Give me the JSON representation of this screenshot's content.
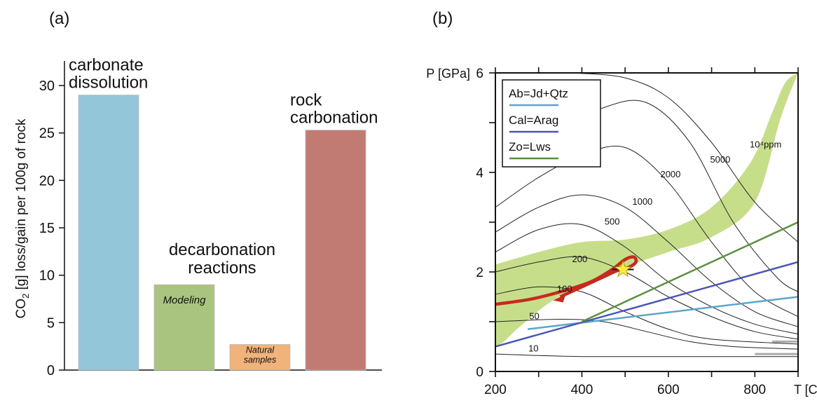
{
  "panels": {
    "a": {
      "label": "(a)"
    },
    "b": {
      "label": "(b)"
    }
  },
  "chart_data": [
    {
      "type": "bar",
      "panel": "(a)",
      "ylabel": "CO2 [g] loss/gain per 100g of rock",
      "ylabel_parts": {
        "pre": "CO",
        "sub": "2",
        "post": " [g] loss/gain per 100g of rock"
      },
      "ylim": [
        0,
        32
      ],
      "yticks": [
        "0",
        "5",
        "10",
        "15",
        "20",
        "25",
        "30"
      ],
      "bars": [
        {
          "value": 29,
          "color": "#93c6d9",
          "text": "",
          "label_lines": [
            "carbonate",
            "dissolution"
          ]
        },
        {
          "value": 9,
          "color": "#a9c47e",
          "text": "Modeling",
          "label_lines": []
        },
        {
          "value": 2.7,
          "color": "#f0b37a",
          "text": "Natural samples",
          "text_lines": [
            "Natural",
            "samples"
          ],
          "label_lines": []
        },
        {
          "value": 25.3,
          "color": "#c27b73",
          "text": "",
          "label_lines": [
            "rock",
            "carbonation"
          ]
        }
      ],
      "group_label_lines": [
        "decarbonation",
        "reactions"
      ]
    },
    {
      "type": "line",
      "panel": "(b)",
      "xlabel": "T [C°]",
      "ylabel": "P [GPa]",
      "xlim": [
        200,
        900
      ],
      "ylim": [
        0,
        6
      ],
      "xticks": [
        "200",
        "400",
        "600",
        "800"
      ],
      "yticks": [
        "0",
        "2",
        "4",
        "6"
      ],
      "legend": {
        "position": "top-left",
        "entries": [
          {
            "name": "Ab=Jd+Qtz",
            "color": "#5aa6c8"
          },
          {
            "name": "Cal=Arag",
            "color": "#4a55b8"
          },
          {
            "name": "Zo=Lws",
            "color": "#5c8f3c"
          }
        ]
      },
      "reaction_lines": [
        {
          "name": "Ab=Jd+Qtz",
          "color": "#5aa6c8",
          "x": [
            275,
            900
          ],
          "y": [
            0.85,
            1.5
          ]
        },
        {
          "name": "Cal=Arag",
          "color": "#4a55b8",
          "x": [
            200,
            900
          ],
          "y": [
            0.5,
            2.2
          ]
        },
        {
          "name": "Zo=Lws",
          "color": "#5c8f3c",
          "x": [
            400,
            900
          ],
          "y": [
            1.0,
            3.0
          ]
        }
      ],
      "contours": [
        {
          "label": "10",
          "label_at": [
            288,
            0.4
          ],
          "x": [
            200,
            300,
            400,
            500,
            600,
            700,
            900
          ],
          "y": [
            0.35,
            0.32,
            0.3,
            0.3,
            0.3,
            0.3,
            0.3
          ]
        },
        {
          "label": "50",
          "label_at": [
            290,
            1.05
          ],
          "x": [
            200,
            350,
            450,
            550,
            650,
            750,
            900
          ],
          "y": [
            1.0,
            1.05,
            1.0,
            0.8,
            0.6,
            0.5,
            0.45
          ]
        },
        {
          "label": "100",
          "label_at": [
            360,
            1.6
          ],
          "x": [
            200,
            300,
            400,
            500,
            600,
            700,
            900
          ],
          "y": [
            1.55,
            1.7,
            1.6,
            1.2,
            0.85,
            0.65,
            0.55
          ]
        },
        {
          "label": "200",
          "label_at": [
            395,
            2.2
          ],
          "x": [
            200,
            300,
            400,
            500,
            600,
            700,
            800,
            900
          ],
          "y": [
            2.0,
            2.2,
            2.3,
            2.0,
            1.5,
            1.1,
            0.8,
            0.65
          ]
        },
        {
          "label": "500",
          "label_at": [
            470,
            2.95
          ],
          "x": [
            200,
            300,
            400,
            500,
            600,
            700,
            800,
            900
          ],
          "y": [
            2.4,
            2.85,
            2.95,
            2.5,
            1.8,
            1.3,
            0.95,
            0.75
          ]
        },
        {
          "label": "1000",
          "label_at": [
            540,
            3.35
          ],
          "x": [
            200,
            300,
            400,
            500,
            600,
            700,
            800,
            900
          ],
          "y": [
            2.8,
            3.3,
            3.55,
            3.3,
            2.6,
            1.8,
            1.2,
            0.9
          ]
        },
        {
          "label": "2000",
          "label_at": [
            605,
            3.9
          ],
          "x": [
            200,
            300,
            400,
            500,
            600,
            700,
            800,
            900
          ],
          "y": [
            3.3,
            3.9,
            4.35,
            4.5,
            3.8,
            2.6,
            1.6,
            1.1
          ]
        },
        {
          "label": "5000",
          "label_at": [
            720,
            4.2
          ],
          "x": [
            250,
            350,
            450,
            550,
            650,
            750,
            850,
            900
          ],
          "y": [
            4.3,
            4.8,
            5.3,
            5.4,
            4.6,
            3.0,
            1.9,
            1.6
          ]
        },
        {
          "label": "10⁴ppm",
          "label_at": [
            825,
            4.5
          ],
          "x": [
            380,
            500,
            600,
            700,
            800,
            900
          ],
          "y": [
            6.0,
            5.9,
            5.5,
            4.6,
            3.4,
            2.6
          ]
        }
      ],
      "field_region": {
        "color": "#c6de8a",
        "upper": {
          "x": [
            200,
            300,
            400,
            500,
            600,
            700,
            790,
            840,
            870,
            900
          ],
          "y": [
            2.15,
            2.4,
            2.6,
            2.65,
            2.85,
            3.3,
            4.2,
            5.2,
            5.8,
            6.0
          ]
        },
        "lower": {
          "x": [
            900,
            860,
            800,
            700,
            600,
            500,
            400,
            320,
            250,
            220,
            200
          ],
          "y": [
            6.0,
            5.1,
            3.4,
            2.7,
            2.4,
            2.1,
            1.75,
            1.35,
            0.85,
            0.6,
            0.5
          ]
        }
      },
      "ptt_path": {
        "color": "#c62a1e",
        "x": [
          200,
          280,
          350,
          420,
          470,
          500,
          520,
          525,
          510,
          480,
          450,
          400,
          350
        ],
        "y": [
          1.35,
          1.45,
          1.6,
          1.8,
          2.05,
          2.25,
          2.3,
          2.2,
          2.1,
          2.02,
          1.9,
          1.7,
          1.5
        ]
      },
      "star": {
        "x": 495,
        "y": 2.05,
        "color": "#ffeb3b"
      },
      "star_bracket": {
        "x": [
          470,
          520
        ],
        "y": 2.05
      }
    }
  ]
}
